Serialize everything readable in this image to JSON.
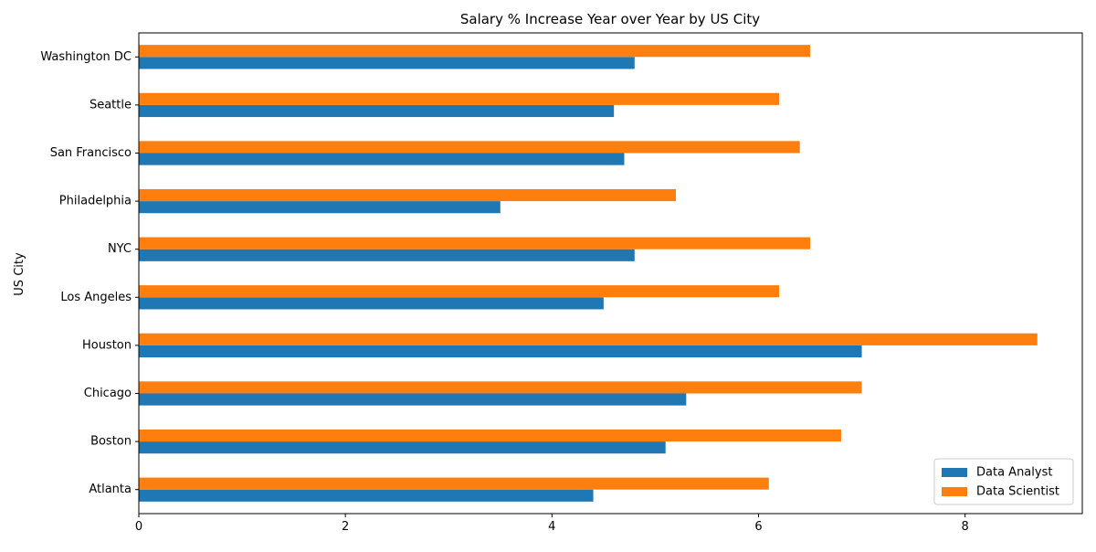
{
  "chart_data": {
    "type": "bar",
    "orientation": "horizontal",
    "title": "Salary % Increase Year over Year by US City",
    "xlabel": "",
    "ylabel": "US City",
    "categories": [
      "Atlanta",
      "Boston",
      "Chicago",
      "Houston",
      "Los Angeles",
      "NYC",
      "Philadelphia",
      "San Francisco",
      "Seattle",
      "Washington DC"
    ],
    "series": [
      {
        "name": "Data Analyst",
        "color": "#1f77b4",
        "values": [
          4.4,
          5.1,
          5.3,
          7.0,
          4.5,
          4.8,
          3.5,
          4.7,
          4.6,
          4.8
        ]
      },
      {
        "name": "Data Scientist",
        "color": "#ff7f0e",
        "values": [
          6.1,
          6.8,
          7.0,
          8.7,
          6.2,
          6.5,
          5.2,
          6.4,
          6.2,
          6.5
        ]
      }
    ],
    "xlim": [
      0,
      9.135
    ],
    "xticks": [
      0,
      2,
      4,
      6,
      8
    ],
    "grid": false,
    "legend_position": "bottom-right"
  }
}
